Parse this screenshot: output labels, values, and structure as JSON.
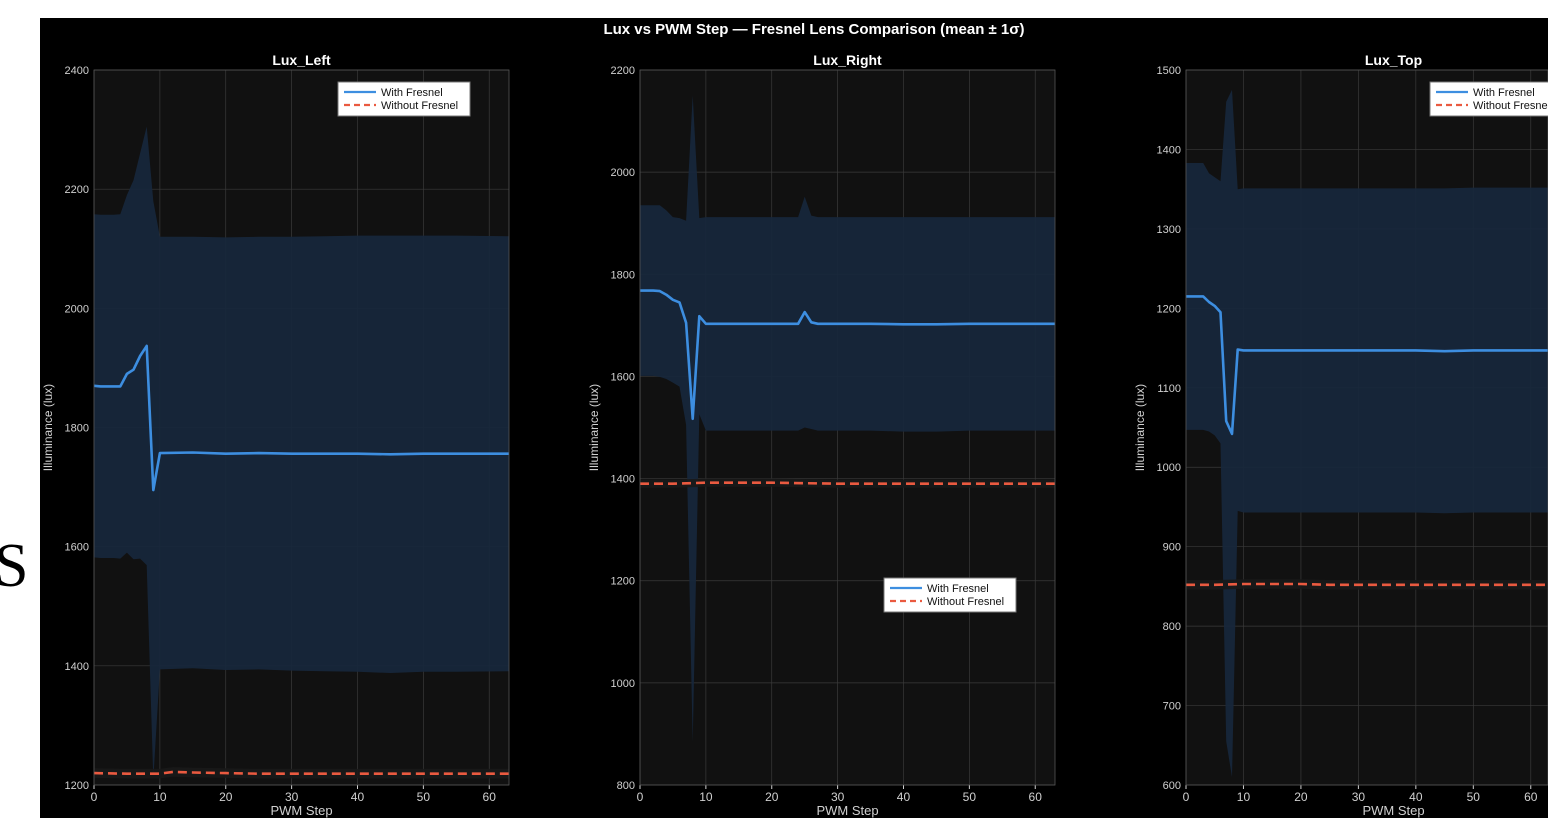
{
  "figure": {
    "suptitle": "Lux vs PWM Step — Fresnel Lens Comparison  (mean ± 1σ)",
    "edge_glyph": "S",
    "colors": {
      "figure_bg": "#000000",
      "axes_bg": "#111111",
      "grid": "#3a3a3a",
      "text": "#ffffff",
      "tick_text": "#d0d0d0",
      "with_fresnel": "#3d8ee0",
      "with_fresnel_band": "#17273b",
      "without_fresnel": "#ea5a40",
      "without_fresnel_band": "#1a1a1a"
    }
  },
  "chart_data": [
    {
      "type": "line",
      "title": "Lux_Left",
      "xlabel": "PWM Step",
      "ylabel": "Illuminance (lux)",
      "xlim": [
        0,
        63
      ],
      "ylim": [
        1200,
        2400
      ],
      "xticks": [
        0,
        10,
        20,
        30,
        40,
        50,
        60
      ],
      "yticks": [
        1200,
        1400,
        1600,
        1800,
        2000,
        2200,
        2400
      ],
      "grid": true,
      "legend_position": "top-right",
      "series": [
        {
          "name": "With Fresnel",
          "style": "solid",
          "x": [
            0,
            1,
            2,
            3,
            4,
            5,
            6,
            7,
            8,
            9,
            10,
            15,
            20,
            25,
            30,
            35,
            40,
            45,
            50,
            55,
            63
          ],
          "y": [
            1870,
            1869,
            1869,
            1869,
            1869,
            1890,
            1897,
            1920,
            1937,
            1695,
            1757,
            1758,
            1756,
            1757,
            1756,
            1756,
            1756,
            1755,
            1756,
            1756,
            1756
          ],
          "upper": [
            2158,
            2157,
            2157,
            2157,
            2158,
            2190,
            2215,
            2260,
            2305,
            2180,
            2120,
            2120,
            2119,
            2120,
            2120,
            2121,
            2122,
            2122,
            2122,
            2122,
            2121
          ],
          "lower": [
            1582,
            1581,
            1581,
            1581,
            1580,
            1590,
            1579,
            1580,
            1569,
            1210,
            1394,
            1396,
            1393,
            1394,
            1392,
            1391,
            1390,
            1388,
            1390,
            1390,
            1391
          ]
        },
        {
          "name": "Without Fresnel",
          "style": "dashed",
          "x": [
            0,
            5,
            10,
            12,
            15,
            20,
            25,
            30,
            35,
            40,
            45,
            50,
            55,
            63
          ],
          "y": [
            1220,
            1219,
            1219,
            1222,
            1221,
            1220,
            1219,
            1219,
            1219,
            1219,
            1219,
            1219,
            1219,
            1219
          ],
          "upper": [
            1228,
            1227,
            1227,
            1230,
            1229,
            1228,
            1227,
            1227,
            1227,
            1227,
            1227,
            1227,
            1227,
            1227
          ],
          "lower": [
            1212,
            1211,
            1211,
            1214,
            1213,
            1212,
            1211,
            1211,
            1211,
            1211,
            1211,
            1211,
            1211,
            1211
          ]
        }
      ]
    },
    {
      "type": "line",
      "title": "Lux_Right",
      "xlabel": "PWM Step",
      "ylabel": "Illuminance (lux)",
      "xlim": [
        0,
        63
      ],
      "ylim": [
        800,
        2200
      ],
      "xticks": [
        0,
        10,
        20,
        30,
        40,
        50,
        60
      ],
      "yticks": [
        800,
        1000,
        1200,
        1400,
        1600,
        1800,
        2000,
        2200
      ],
      "grid": true,
      "legend_position": "center-right",
      "series": [
        {
          "name": "With Fresnel",
          "style": "solid",
          "x": [
            0,
            1,
            2,
            3,
            4,
            5,
            6,
            7,
            8,
            9,
            10,
            15,
            20,
            24,
            25,
            26,
            27,
            30,
            35,
            40,
            45,
            50,
            55,
            63
          ],
          "y": [
            1768,
            1768,
            1768,
            1767,
            1760,
            1750,
            1745,
            1705,
            1517,
            1718,
            1703,
            1703,
            1703,
            1703,
            1726,
            1706,
            1703,
            1703,
            1703,
            1702,
            1702,
            1703,
            1703,
            1703
          ],
          "upper": [
            1935,
            1935,
            1935,
            1935,
            1925,
            1912,
            1910,
            1905,
            2150,
            1910,
            1912,
            1912,
            1912,
            1912,
            1952,
            1915,
            1912,
            1912,
            1912,
            1912,
            1912,
            1912,
            1912,
            1912
          ],
          "lower": [
            1601,
            1601,
            1601,
            1599,
            1595,
            1588,
            1580,
            1505,
            884,
            1526,
            1494,
            1494,
            1494,
            1494,
            1500,
            1497,
            1494,
            1494,
            1494,
            1492,
            1492,
            1494,
            1494,
            1494
          ]
        },
        {
          "name": "Without Fresnel",
          "style": "dashed",
          "x": [
            0,
            5,
            10,
            15,
            20,
            25,
            30,
            35,
            40,
            45,
            50,
            55,
            63
          ],
          "y": [
            1390,
            1390,
            1392,
            1392,
            1392,
            1391,
            1390,
            1390,
            1390,
            1390,
            1390,
            1390,
            1390
          ],
          "upper": [
            1398,
            1398,
            1400,
            1400,
            1400,
            1399,
            1398,
            1398,
            1398,
            1398,
            1398,
            1398,
            1398
          ],
          "lower": [
            1382,
            1382,
            1384,
            1384,
            1384,
            1383,
            1382,
            1382,
            1382,
            1382,
            1382,
            1382,
            1382
          ]
        }
      ]
    },
    {
      "type": "line",
      "title": "Lux_Top",
      "xlabel": "PWM Step",
      "ylabel": "Illuminance (lux)",
      "xlim": [
        0,
        63
      ],
      "ylim": [
        600,
        1500
      ],
      "xticks": [
        0,
        10,
        20,
        30,
        40,
        50,
        60
      ],
      "yticks": [
        600,
        700,
        800,
        900,
        1000,
        1100,
        1200,
        1300,
        1400,
        1500
      ],
      "grid": true,
      "legend_position": "top-right",
      "series": [
        {
          "name": "With Fresnel",
          "style": "solid",
          "x": [
            0,
            1,
            2,
            3,
            4,
            5,
            6,
            7,
            8,
            9,
            10,
            15,
            20,
            25,
            30,
            35,
            40,
            45,
            50,
            55,
            63
          ],
          "y": [
            1215,
            1215,
            1215,
            1215,
            1208,
            1203,
            1195,
            1058,
            1042,
            1148,
            1147,
            1147,
            1147,
            1147,
            1147,
            1147,
            1147,
            1146,
            1147,
            1147,
            1147
          ],
          "upper": [
            1383,
            1383,
            1383,
            1383,
            1370,
            1365,
            1360,
            1460,
            1475,
            1350,
            1351,
            1351,
            1351,
            1351,
            1351,
            1351,
            1351,
            1351,
            1352,
            1352,
            1352
          ],
          "lower": [
            1047,
            1047,
            1047,
            1047,
            1045,
            1040,
            1030,
            655,
            610,
            945,
            943,
            943,
            943,
            943,
            943,
            943,
            943,
            942,
            943,
            943,
            943
          ]
        },
        {
          "name": "Without Fresnel",
          "style": "dashed",
          "x": [
            0,
            5,
            10,
            15,
            20,
            25,
            30,
            35,
            40,
            45,
            50,
            55,
            63
          ],
          "y": [
            852,
            852,
            853,
            853,
            853,
            852,
            852,
            852,
            852,
            852,
            852,
            852,
            852
          ],
          "upper": [
            858,
            858,
            859,
            859,
            859,
            858,
            858,
            858,
            858,
            858,
            858,
            858,
            858
          ],
          "lower": [
            846,
            846,
            847,
            847,
            847,
            846,
            846,
            846,
            846,
            846,
            846,
            846,
            846
          ]
        }
      ]
    }
  ]
}
